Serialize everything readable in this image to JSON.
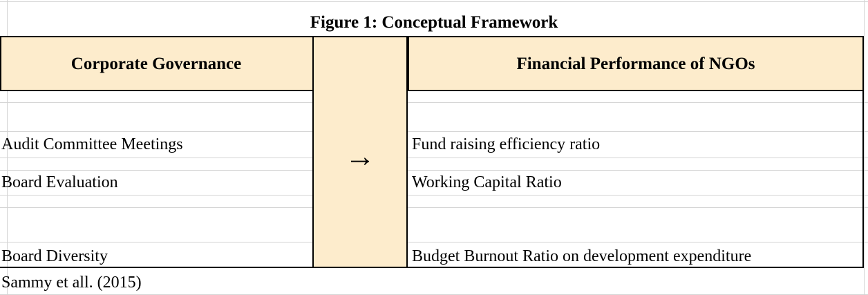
{
  "title": "Figure 1: Conceptual Framework",
  "table": {
    "headers": [
      "Corporate Governance",
      "Financial Performance of NGOs"
    ],
    "connector": "→",
    "rows": [
      [
        "Audit Committee Meetings",
        "Fund raising efficiency ratio"
      ],
      [
        "Board Evaluation",
        "Working Capital Ratio"
      ],
      [
        "Board Diversity",
        "Budget Burnout Ratio on development expenditure"
      ]
    ]
  },
  "source": "Sammy et all. (2015)"
}
